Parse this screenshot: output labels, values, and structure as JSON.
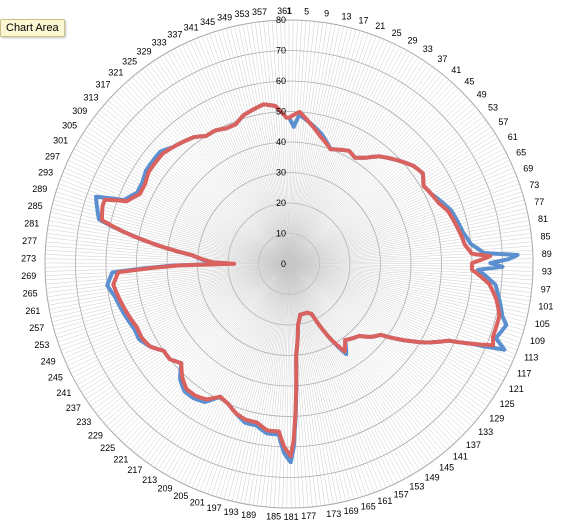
{
  "tooltip": {
    "text": "Chart Area"
  },
  "chart_data": {
    "type": "radar",
    "title": "",
    "angle_start": 1,
    "angle_end": 361,
    "angle_step": 1,
    "category_label_step": 4,
    "rlim": [
      0,
      80
    ],
    "r_ticks": [
      0,
      10,
      20,
      30,
      40,
      50,
      60,
      70,
      80
    ],
    "legend": "none",
    "grid": true,
    "colors": {
      "series1": "#5b8fd0",
      "series2": "#d9625f",
      "grid": "#c8c8c8",
      "ring": "#a8a8a8"
    },
    "series": [
      {
        "key": "series1",
        "anchors": [
          [
            1,
            48
          ],
          [
            3,
            45
          ],
          [
            5,
            49
          ],
          [
            9,
            47
          ],
          [
            15,
            44
          ],
          [
            21,
            40
          ],
          [
            25,
            41
          ],
          [
            29,
            42
          ],
          [
            33,
            41
          ],
          [
            37,
            43
          ],
          [
            41,
            46
          ],
          [
            45,
            48
          ],
          [
            49,
            50
          ],
          [
            53,
            52
          ],
          [
            57,
            53
          ],
          [
            61,
            51
          ],
          [
            65,
            52
          ],
          [
            69,
            54
          ],
          [
            73,
            56
          ],
          [
            77,
            57
          ],
          [
            81,
            58
          ],
          [
            85,
            60
          ],
          [
            88,
            64
          ],
          [
            89,
            75
          ],
          [
            90,
            72
          ],
          [
            91,
            66
          ],
          [
            92,
            70
          ],
          [
            93,
            62
          ],
          [
            97,
            68
          ],
          [
            101,
            70
          ],
          [
            105,
            72
          ],
          [
            107,
            74
          ],
          [
            109,
            73
          ],
          [
            111,
            72
          ],
          [
            113,
            76
          ],
          [
            115,
            65
          ],
          [
            117,
            58
          ],
          [
            121,
            52
          ],
          [
            125,
            45
          ],
          [
            129,
            38
          ],
          [
            133,
            36
          ],
          [
            137,
            33
          ],
          [
            141,
            32
          ],
          [
            145,
            31
          ],
          [
            149,
            35
          ],
          [
            153,
            27
          ],
          [
            157,
            18
          ],
          [
            161,
            17
          ],
          [
            165,
            17
          ],
          [
            169,
            17
          ],
          [
            173,
            20
          ],
          [
            177,
            30
          ],
          [
            180,
            60
          ],
          [
            181,
            65
          ],
          [
            183,
            62
          ],
          [
            185,
            56
          ],
          [
            189,
            56
          ],
          [
            193,
            54
          ],
          [
            197,
            54
          ],
          [
            201,
            52
          ],
          [
            205,
            50
          ],
          [
            209,
            49
          ],
          [
            213,
            53
          ],
          [
            217,
            54
          ],
          [
            221,
            54
          ],
          [
            225,
            52
          ],
          [
            229,
            48
          ],
          [
            233,
            50
          ],
          [
            237,
            50
          ],
          [
            241,
            53
          ],
          [
            245,
            55
          ],
          [
            249,
            55
          ],
          [
            253,
            56
          ],
          [
            257,
            57
          ],
          [
            261,
            58
          ],
          [
            265,
            60
          ],
          [
            269,
            58
          ],
          [
            271,
            38
          ],
          [
            272,
            20
          ],
          [
            273,
            26
          ],
          [
            277,
            32
          ],
          [
            281,
            48
          ],
          [
            283,
            56
          ],
          [
            285,
            64
          ],
          [
            289,
            66
          ],
          [
            291,
            67
          ],
          [
            293,
            58
          ],
          [
            297,
            55
          ],
          [
            301,
            55
          ],
          [
            305,
            56
          ],
          [
            309,
            56
          ],
          [
            313,
            56
          ],
          [
            317,
            54
          ],
          [
            321,
            53
          ],
          [
            325,
            52
          ],
          [
            329,
            50
          ],
          [
            333,
            50
          ],
          [
            337,
            49
          ],
          [
            341,
            49
          ],
          [
            345,
            51
          ],
          [
            349,
            52
          ],
          [
            353,
            53
          ],
          [
            357,
            52
          ],
          [
            361,
            48
          ]
        ]
      },
      {
        "key": "series2",
        "anchors": [
          [
            1,
            48
          ],
          [
            5,
            50
          ],
          [
            9,
            47
          ],
          [
            15,
            43
          ],
          [
            21,
            40
          ],
          [
            25,
            41
          ],
          [
            29,
            42
          ],
          [
            33,
            41
          ],
          [
            37,
            43
          ],
          [
            41,
            46
          ],
          [
            45,
            48
          ],
          [
            49,
            50
          ],
          [
            53,
            52
          ],
          [
            57,
            53
          ],
          [
            61,
            51
          ],
          [
            65,
            52
          ],
          [
            69,
            53
          ],
          [
            73,
            55
          ],
          [
            77,
            56
          ],
          [
            81,
            57
          ],
          [
            85,
            58
          ],
          [
            88,
            60
          ],
          [
            89,
            66
          ],
          [
            90,
            63
          ],
          [
            91,
            60
          ],
          [
            93,
            60
          ],
          [
            97,
            66
          ],
          [
            101,
            69
          ],
          [
            105,
            71
          ],
          [
            109,
            71
          ],
          [
            111,
            71
          ],
          [
            113,
            72
          ],
          [
            115,
            65
          ],
          [
            117,
            58
          ],
          [
            121,
            52
          ],
          [
            125,
            45
          ],
          [
            129,
            38
          ],
          [
            133,
            36
          ],
          [
            137,
            33
          ],
          [
            141,
            32
          ],
          [
            145,
            31
          ],
          [
            149,
            34
          ],
          [
            153,
            27
          ],
          [
            157,
            18
          ],
          [
            161,
            17
          ],
          [
            165,
            17
          ],
          [
            169,
            17
          ],
          [
            173,
            20
          ],
          [
            177,
            30
          ],
          [
            180,
            58
          ],
          [
            181,
            63
          ],
          [
            183,
            60
          ],
          [
            185,
            55
          ],
          [
            189,
            55
          ],
          [
            193,
            53
          ],
          [
            197,
            53
          ],
          [
            201,
            52
          ],
          [
            205,
            50
          ],
          [
            209,
            49
          ],
          [
            213,
            52
          ],
          [
            217,
            53
          ],
          [
            221,
            53
          ],
          [
            225,
            51
          ],
          [
            229,
            48
          ],
          [
            233,
            50
          ],
          [
            237,
            50
          ],
          [
            241,
            53
          ],
          [
            245,
            54
          ],
          [
            249,
            54
          ],
          [
            253,
            55
          ],
          [
            257,
            56
          ],
          [
            261,
            57
          ],
          [
            265,
            58
          ],
          [
            269,
            56
          ],
          [
            271,
            36
          ],
          [
            272,
            18
          ],
          [
            273,
            25
          ],
          [
            277,
            32
          ],
          [
            281,
            48
          ],
          [
            283,
            56
          ],
          [
            285,
            63
          ],
          [
            289,
            64
          ],
          [
            291,
            64
          ],
          [
            293,
            57
          ],
          [
            297,
            54
          ],
          [
            301,
            54
          ],
          [
            305,
            55
          ],
          [
            309,
            55
          ],
          [
            313,
            55
          ],
          [
            317,
            54
          ],
          [
            321,
            53
          ],
          [
            325,
            52
          ],
          [
            329,
            50
          ],
          [
            333,
            50
          ],
          [
            337,
            49
          ],
          [
            341,
            49
          ],
          [
            345,
            51
          ],
          [
            349,
            52
          ],
          [
            353,
            53
          ],
          [
            357,
            52
          ],
          [
            361,
            48
          ]
        ]
      }
    ]
  }
}
